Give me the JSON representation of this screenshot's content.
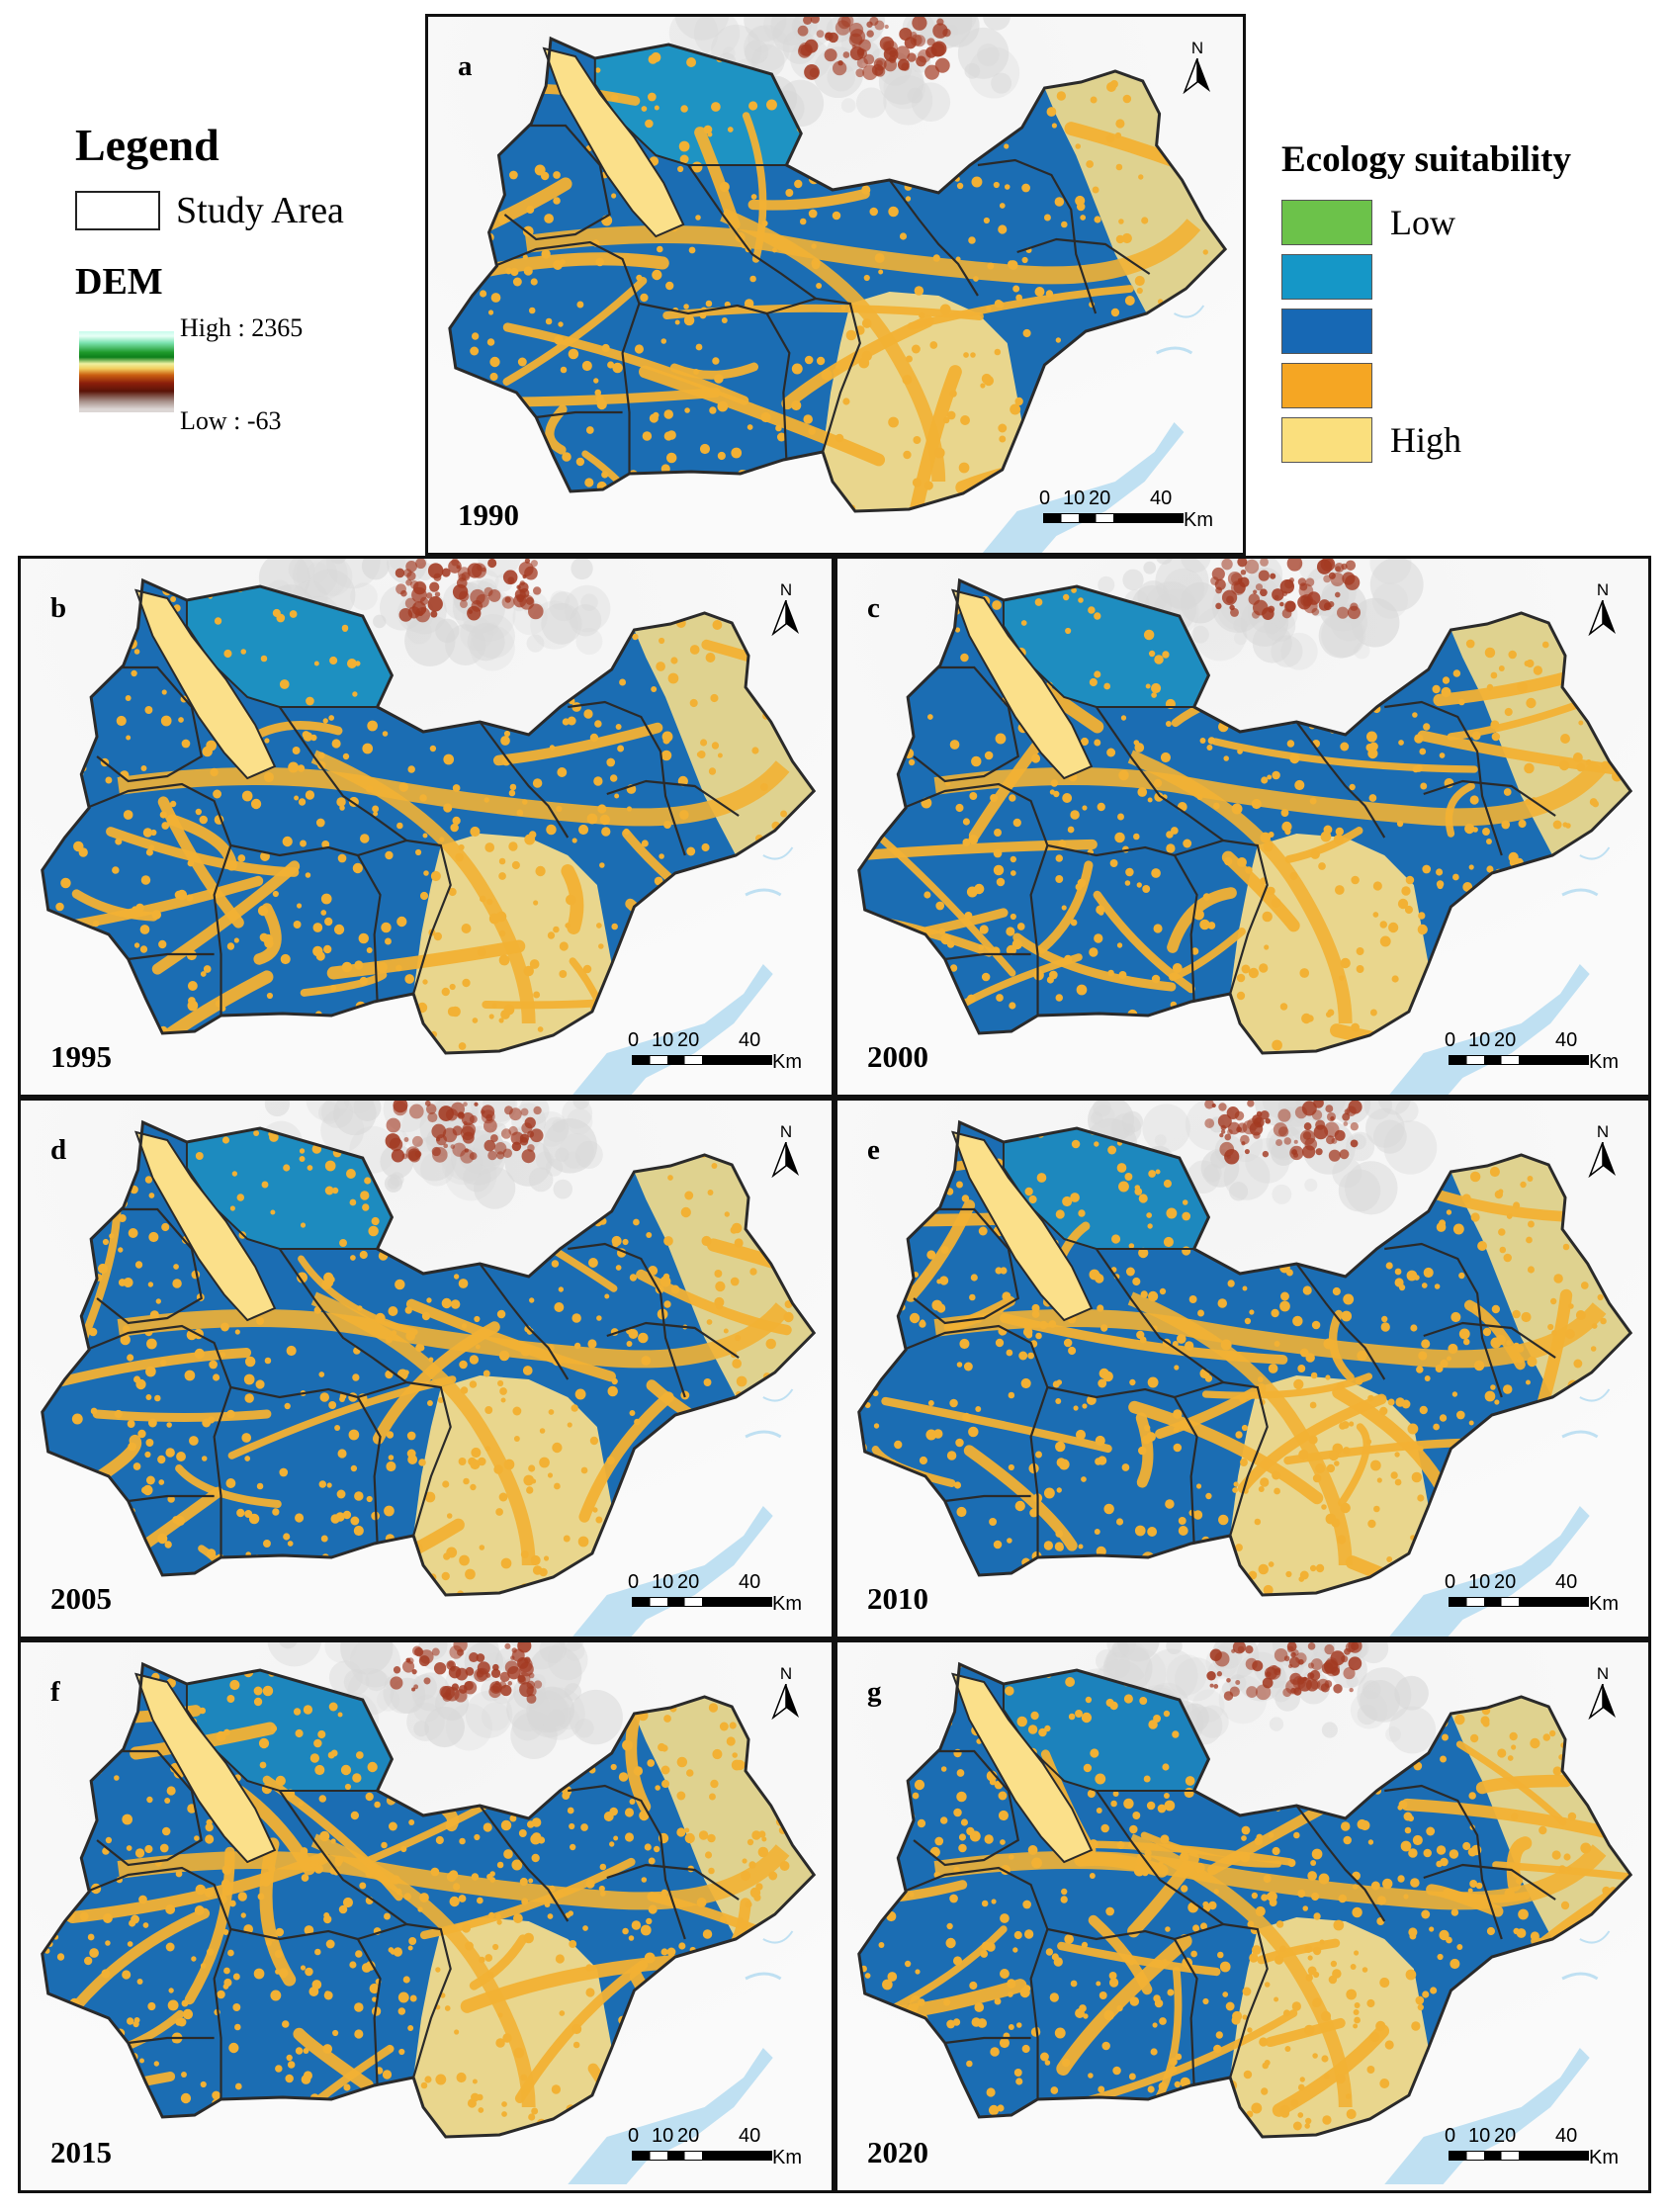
{
  "legend": {
    "title": "Legend",
    "study_area_label": "Study Area",
    "dem_title": "DEM",
    "dem_high_label": "High : 2365",
    "dem_low_label": "Low : -63"
  },
  "ecology_legend": {
    "title": "Ecology suitability",
    "classes": [
      {
        "label": "Low",
        "color": "#6cc24a"
      },
      {
        "label": "",
        "color": "#1597c7"
      },
      {
        "label": "",
        "color": "#1768b4"
      },
      {
        "label": "",
        "color": "#f5a623"
      },
      {
        "label": "High",
        "color": "#fadf7d"
      }
    ]
  },
  "panels": [
    {
      "letter": "a",
      "year": "1990"
    },
    {
      "letter": "b",
      "year": "1995"
    },
    {
      "letter": "c",
      "year": "2000"
    },
    {
      "letter": "d",
      "year": "2005"
    },
    {
      "letter": "e",
      "year": "2010"
    },
    {
      "letter": "f",
      "year": "2015"
    },
    {
      "letter": "g",
      "year": "2020"
    }
  ],
  "scale_bar": {
    "ticks": [
      "0",
      "10",
      "20",
      "40"
    ],
    "unit": "Km"
  },
  "north_arrow_label": "N",
  "colors": {
    "base_blue": "#1b6db3",
    "teal": "#1f9ac5",
    "orange": "#f2b134",
    "yellow": "#fbe08a",
    "boundary": "#2a2a2a",
    "water": "#bfe0f2",
    "mountain": "#a33a22"
  }
}
